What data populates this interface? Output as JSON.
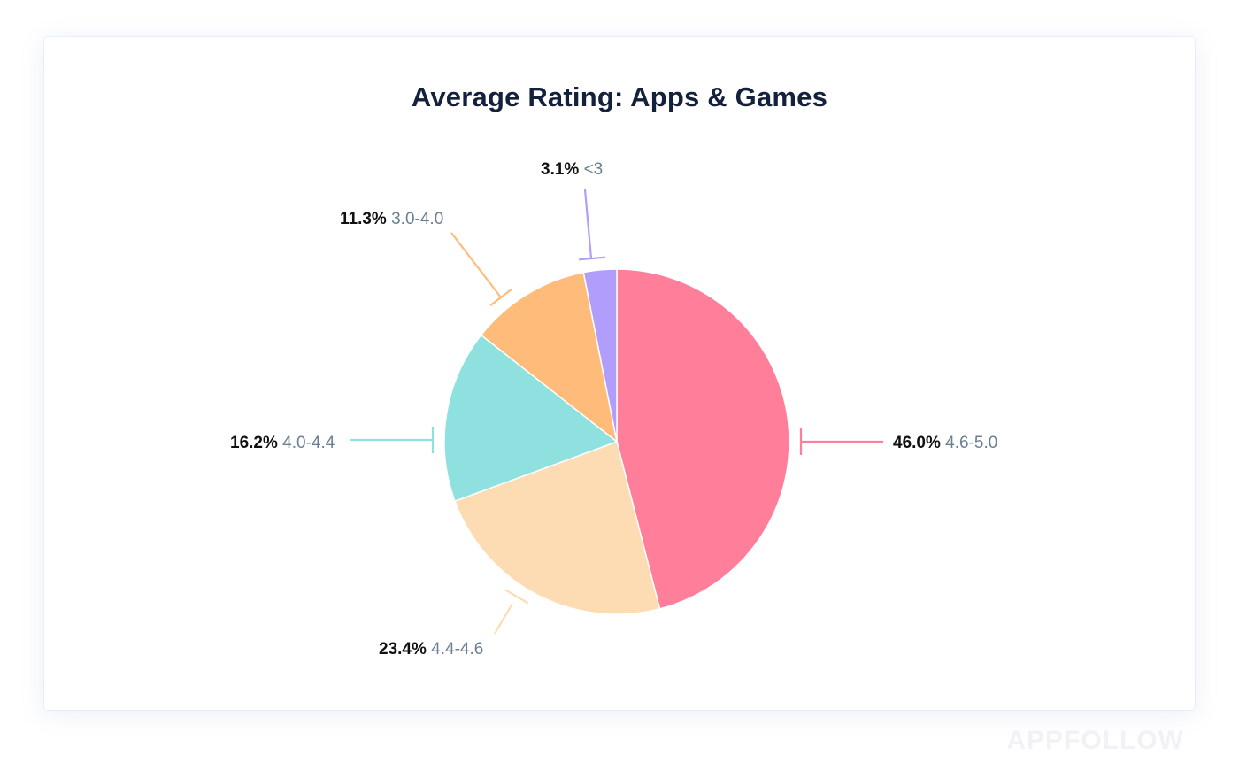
{
  "chart_data": {
    "type": "pie",
    "title": "Average Rating: Apps & Games",
    "slices": [
      {
        "label": "4.6-5.0",
        "value": 46.0,
        "value_label": "46.0%",
        "color": "#ff7f9b"
      },
      {
        "label": "4.4-4.6",
        "value": 23.4,
        "value_label": "23.4%",
        "color": "#fddbb3"
      },
      {
        "label": "4.0-4.4",
        "value": 16.2,
        "value_label": "16.2%",
        "color": "#8fe1e0"
      },
      {
        "label": "3.0-4.0",
        "value": 11.3,
        "value_label": "11.3%",
        "color": "#ffbb7a"
      },
      {
        "label": "<3",
        "value": 3.1,
        "value_label": "3.1%",
        "color": "#b19dfb"
      }
    ],
    "legend": "none",
    "start_angle": "12 o'clock",
    "direction": "clockwise"
  },
  "watermark": "APPFOLLOW"
}
